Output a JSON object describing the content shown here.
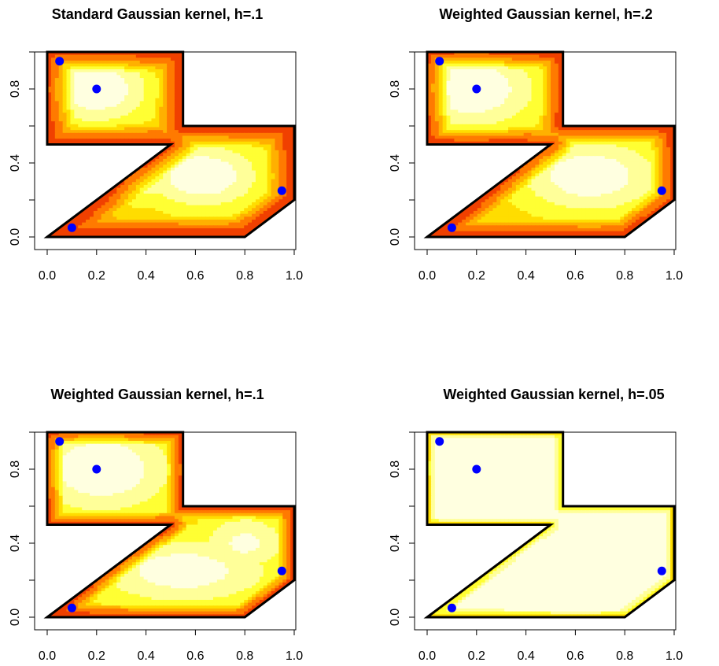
{
  "chart_data": [
    {
      "type": "heatmap",
      "title": "Standard Gaussian kernel, h=.1",
      "xlim": [
        0,
        1
      ],
      "ylim": [
        0,
        1
      ],
      "x_ticks": [
        "0.0",
        "0.2",
        "0.4",
        "0.6",
        "0.8",
        "1.0"
      ],
      "y_ticks": [
        "0.0",
        "0.4",
        "0.8"
      ],
      "region": [
        [
          0,
          0
        ],
        [
          0.5,
          0.5
        ],
        [
          0,
          0.5
        ],
        [
          0,
          1
        ],
        [
          0.55,
          1
        ],
        [
          0.55,
          0.6
        ],
        [
          1,
          0.6
        ],
        [
          1,
          0.2
        ],
        [
          0.8,
          0
        ],
        [
          0,
          0
        ]
      ],
      "points": [
        {
          "x": 0.05,
          "y": 0.95
        },
        {
          "x": 0.2,
          "y": 0.8
        },
        {
          "x": 0.95,
          "y": 0.25
        },
        {
          "x": 0.1,
          "y": 0.05
        }
      ],
      "colormap": [
        "#cc1a00",
        "#f04000",
        "#ff7a00",
        "#ffb000",
        "#ffdd00",
        "#ffff33",
        "#ffff99",
        "#ffffe0"
      ],
      "grid": false
    },
    {
      "type": "heatmap",
      "title": "Weighted Gaussian kernel, h=.2",
      "xlim": [
        0,
        1
      ],
      "ylim": [
        0,
        1
      ],
      "x_ticks": [
        "0.0",
        "0.2",
        "0.4",
        "0.6",
        "0.8",
        "1.0"
      ],
      "y_ticks": [
        "0.0",
        "0.4",
        "0.8"
      ],
      "region": [
        [
          0,
          0
        ],
        [
          0.5,
          0.5
        ],
        [
          0,
          0.5
        ],
        [
          0,
          1
        ],
        [
          0.55,
          1
        ],
        [
          0.55,
          0.6
        ],
        [
          1,
          0.6
        ],
        [
          1,
          0.2
        ],
        [
          0.8,
          0
        ],
        [
          0,
          0
        ]
      ],
      "points": [
        {
          "x": 0.05,
          "y": 0.95
        },
        {
          "x": 0.2,
          "y": 0.8
        },
        {
          "x": 0.95,
          "y": 0.25
        },
        {
          "x": 0.1,
          "y": 0.05
        }
      ],
      "colormap": [
        "#cc1a00",
        "#f04000",
        "#ff7a00",
        "#ffb000",
        "#ffdd00",
        "#ffff33",
        "#ffff99",
        "#ffffe0"
      ],
      "grid": false
    },
    {
      "type": "heatmap",
      "title": "Weighted Gaussian kernel, h=.1",
      "xlim": [
        0,
        1
      ],
      "ylim": [
        0,
        1
      ],
      "x_ticks": [
        "0.0",
        "0.2",
        "0.4",
        "0.6",
        "0.8",
        "1.0"
      ],
      "y_ticks": [
        "0.0",
        "0.4",
        "0.8"
      ],
      "region": [
        [
          0,
          0
        ],
        [
          0.5,
          0.5
        ],
        [
          0,
          0.5
        ],
        [
          0,
          1
        ],
        [
          0.55,
          1
        ],
        [
          0.55,
          0.6
        ],
        [
          1,
          0.6
        ],
        [
          1,
          0.2
        ],
        [
          0.8,
          0
        ],
        [
          0,
          0
        ]
      ],
      "points": [
        {
          "x": 0.05,
          "y": 0.95
        },
        {
          "x": 0.2,
          "y": 0.8
        },
        {
          "x": 0.95,
          "y": 0.25
        },
        {
          "x": 0.1,
          "y": 0.05
        }
      ],
      "colormap": [
        "#cc1a00",
        "#f04000",
        "#ff7a00",
        "#ffb000",
        "#ffdd00",
        "#ffff33",
        "#ffff99",
        "#ffffe0"
      ],
      "grid": false
    },
    {
      "type": "heatmap",
      "title": "Weighted Gaussian kernel, h=.05",
      "xlim": [
        0,
        1
      ],
      "ylim": [
        0,
        1
      ],
      "x_ticks": [
        "0.0",
        "0.2",
        "0.4",
        "0.6",
        "0.8",
        "1.0"
      ],
      "y_ticks": [
        "0.0",
        "0.4",
        "0.8"
      ],
      "region": [
        [
          0,
          0
        ],
        [
          0.5,
          0.5
        ],
        [
          0,
          0.5
        ],
        [
          0,
          1
        ],
        [
          0.55,
          1
        ],
        [
          0.55,
          0.6
        ],
        [
          1,
          0.6
        ],
        [
          1,
          0.2
        ],
        [
          0.8,
          0
        ],
        [
          0,
          0
        ]
      ],
      "points": [
        {
          "x": 0.05,
          "y": 0.95
        },
        {
          "x": 0.2,
          "y": 0.8
        },
        {
          "x": 0.95,
          "y": 0.25
        },
        {
          "x": 0.1,
          "y": 0.05
        }
      ],
      "colormap": [
        "#cc1a00",
        "#f04000",
        "#ff7a00",
        "#ffb000",
        "#ffdd00",
        "#ffff33",
        "#ffff99",
        "#ffffe0"
      ],
      "grid": false
    }
  ]
}
